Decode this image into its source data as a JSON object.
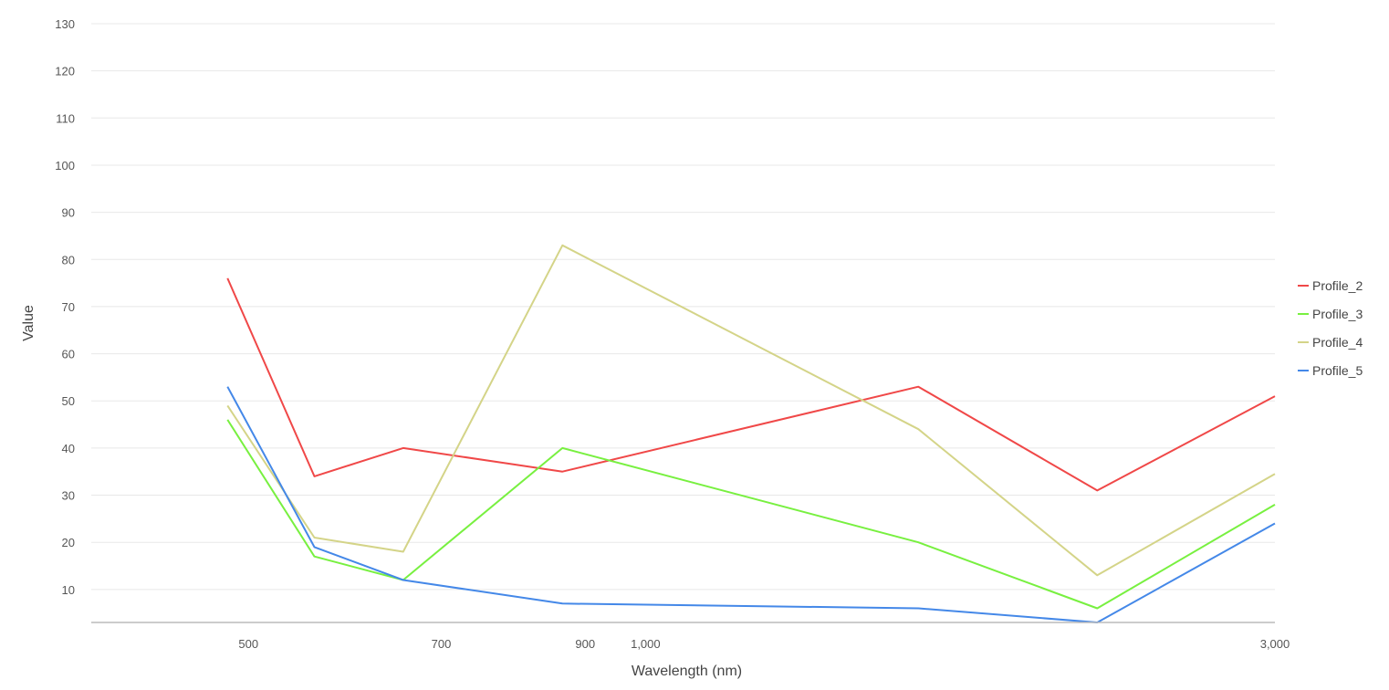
{
  "chart_data": {
    "type": "line",
    "xlabel": "Wavelength (nm)",
    "ylabel": "Value",
    "x_scale": "log",
    "xlim": [
      380,
      3000
    ],
    "ylim": [
      3,
      130
    ],
    "x_ticks": [
      500,
      700,
      900,
      1000,
      3000
    ],
    "x_tick_labels": [
      "500",
      "700",
      "900",
      "1,000",
      "3,000"
    ],
    "y_ticks": [
      10,
      20,
      30,
      40,
      50,
      60,
      70,
      80,
      90,
      100,
      110,
      120,
      130
    ],
    "y_tick_labels": [
      "10",
      "20",
      "30",
      "40",
      "50",
      "60",
      "70",
      "80",
      "90",
      "100",
      "110",
      "120",
      "130"
    ],
    "grid": "horizontal",
    "legend_position": "right",
    "x": [
      482,
      561,
      655,
      865,
      1610,
      2200,
      3000
    ],
    "series": [
      {
        "name": "Profile_2",
        "color": "#f04848",
        "values": [
          76,
          34,
          40,
          35,
          53,
          31,
          51
        ]
      },
      {
        "name": "Profile_3",
        "color": "#78f040",
        "values": [
          46,
          17,
          12,
          40,
          20,
          6,
          28
        ]
      },
      {
        "name": "Profile_4",
        "color": "#d4d488",
        "values": [
          49,
          21,
          18,
          83,
          44,
          13,
          34.5
        ]
      },
      {
        "name": "Profile_5",
        "color": "#4488e8",
        "values": [
          53,
          19,
          12,
          7,
          6,
          3,
          24
        ]
      }
    ]
  }
}
